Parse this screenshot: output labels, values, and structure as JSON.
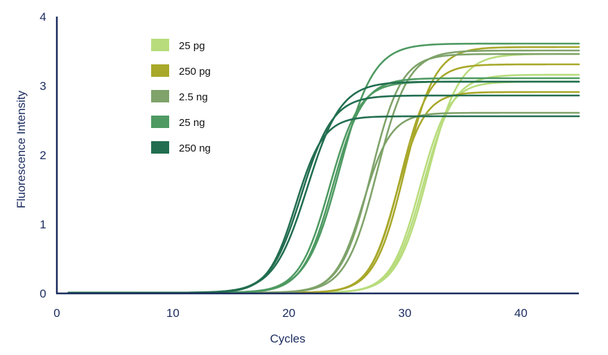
{
  "chart_data": {
    "type": "line",
    "title": "",
    "xlabel": "Cycles",
    "ylabel": "Fluorescence Intensity",
    "xlim": [
      0,
      45
    ],
    "ylim": [
      0,
      4
    ],
    "x_ticks": [
      0,
      10,
      20,
      30,
      40
    ],
    "y_ticks": [
      0,
      1,
      2,
      3,
      4
    ],
    "grid": false,
    "legend_position": "top-left",
    "axis_color": "#1a2b5e",
    "label_color": "#1a2b5e",
    "series": [
      {
        "name": "25 pg",
        "color": "#b8dc7c",
        "replicates": [
          {
            "baseline": 0.01,
            "plateau": 3.45,
            "midpoint": 32.0,
            "slope": 1.35,
            "start": 1
          },
          {
            "baseline": 0.01,
            "plateau": 3.15,
            "midpoint": 31.6,
            "slope": 1.3,
            "start": 1
          },
          {
            "baseline": 0.01,
            "plateau": 3.05,
            "midpoint": 31.3,
            "slope": 1.25,
            "start": 1
          }
        ]
      },
      {
        "name": "250 pg",
        "color": "#a8a82a",
        "replicates": [
          {
            "baseline": 0.01,
            "plateau": 3.55,
            "midpoint": 30.0,
            "slope": 1.3,
            "start": 1
          },
          {
            "baseline": 0.01,
            "plateau": 3.3,
            "midpoint": 29.6,
            "slope": 1.25,
            "start": 1
          },
          {
            "baseline": 0.01,
            "plateau": 2.9,
            "midpoint": 29.3,
            "slope": 1.2,
            "start": 1
          }
        ]
      },
      {
        "name": "2.5 ng",
        "color": "#7fa36a",
        "replicates": [
          {
            "baseline": 0.01,
            "plateau": 3.5,
            "midpoint": 27.6,
            "slope": 1.35,
            "start": 1
          },
          {
            "baseline": 0.01,
            "plateau": 3.45,
            "midpoint": 27.1,
            "slope": 1.3,
            "start": 1
          },
          {
            "baseline": 0.01,
            "plateau": 2.6,
            "midpoint": 26.4,
            "slope": 1.2,
            "start": 1
          }
        ]
      },
      {
        "name": "25 ng",
        "color": "#4e9a62",
        "replicates": [
          {
            "baseline": 0.01,
            "plateau": 3.6,
            "midpoint": 24.4,
            "slope": 1.45,
            "start": 1
          },
          {
            "baseline": 0.01,
            "plateau": 3.1,
            "midpoint": 23.8,
            "slope": 1.3,
            "start": 1
          },
          {
            "baseline": 0.01,
            "plateau": 3.05,
            "midpoint": 23.5,
            "slope": 1.3,
            "start": 1
          }
        ]
      },
      {
        "name": "250 ng",
        "color": "#226e50",
        "replicates": [
          {
            "baseline": 0.01,
            "plateau": 3.05,
            "midpoint": 21.6,
            "slope": 1.45,
            "start": 1
          },
          {
            "baseline": 0.01,
            "plateau": 2.85,
            "midpoint": 21.1,
            "slope": 1.35,
            "start": 1
          },
          {
            "baseline": 0.01,
            "plateau": 2.55,
            "midpoint": 20.6,
            "slope": 1.2,
            "start": 1
          }
        ]
      }
    ]
  }
}
